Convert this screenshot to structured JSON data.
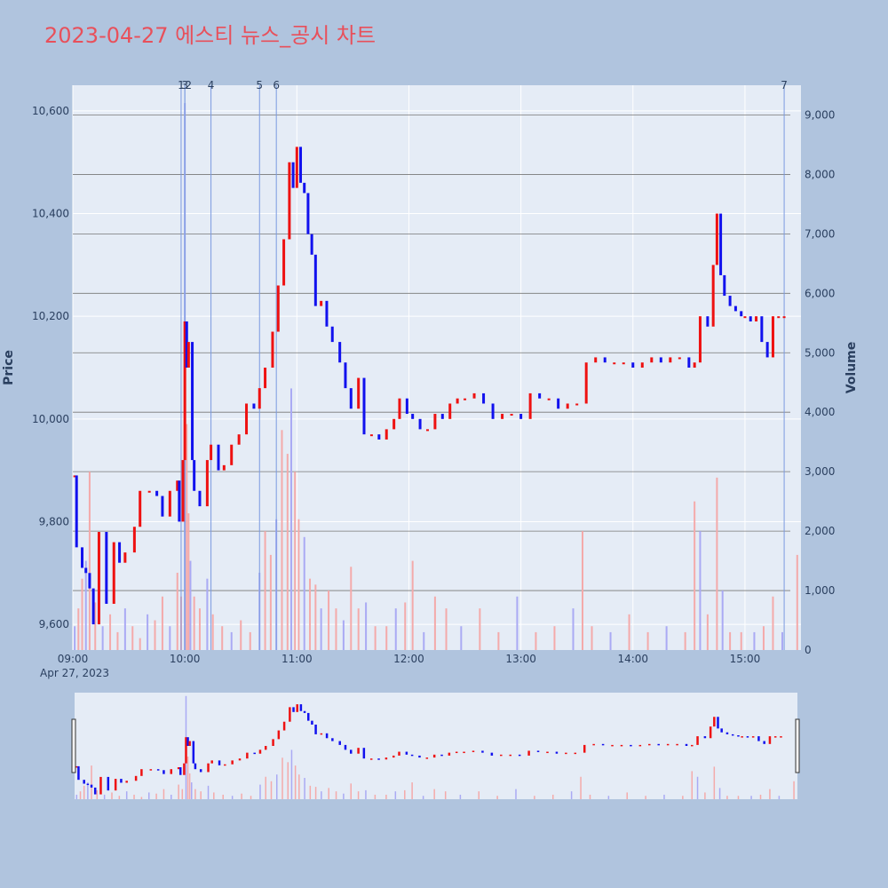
{
  "chart_data": {
    "type": "candlestick",
    "title": "2023-04-27 에스티 뉴스_공시 차트",
    "ylabel": "Price",
    "y2label": "Volume",
    "date_label": "Apr 27, 2023",
    "price_ylim": [
      9550,
      10650
    ],
    "volume_ylim": [
      0,
      9500
    ],
    "x_range": [
      "09:00",
      "15:30"
    ],
    "x_ticks": [
      "09:00",
      "10:00",
      "11:00",
      "12:00",
      "13:00",
      "14:00",
      "15:00"
    ],
    "y_ticks": [
      9600,
      9800,
      10000,
      10200,
      10400,
      10600
    ],
    "y_tick_labels": [
      "9,600",
      "9,800",
      "10,000",
      "10,200",
      "10,400",
      "10,600"
    ],
    "volume_ticks": [
      0,
      1000,
      2000,
      3000,
      4000,
      5000,
      6000,
      7000,
      8000,
      9000
    ],
    "volume_tick_labels": [
      "0",
      "1,000",
      "2,000",
      "3,000",
      "4,000",
      "5,000",
      "6,000",
      "7,000",
      "8,000",
      "9,000"
    ],
    "colors": {
      "up": "#ee1111",
      "down": "#1111ee",
      "up_volume": "#f4aaaa",
      "down_volume": "#aaaaf4",
      "marker": "#7a9ae0"
    },
    "news_markers": [
      {
        "label": "1",
        "time": "09:58"
      },
      {
        "label": "2",
        "time": "10:00"
      },
      {
        "label": "3",
        "time": "10:00"
      },
      {
        "label": "4",
        "time": "10:14"
      },
      {
        "label": "5",
        "time": "10:40"
      },
      {
        "label": "6",
        "time": "10:49"
      },
      {
        "label": "7",
        "time": "15:21"
      }
    ],
    "price_series": [
      [
        "09:01",
        9890
      ],
      [
        "09:02",
        9750
      ],
      [
        "09:05",
        9710
      ],
      [
        "09:07",
        9700
      ],
      [
        "09:09",
        9670
      ],
      [
        "09:11",
        9600
      ],
      [
        "09:14",
        9780
      ],
      [
        "09:18",
        9640
      ],
      [
        "09:22",
        9760
      ],
      [
        "09:25",
        9720
      ],
      [
        "09:28",
        9740
      ],
      [
        "09:33",
        9790
      ],
      [
        "09:36",
        9860
      ],
      [
        "09:41",
        9860
      ],
      [
        "09:45",
        9850
      ],
      [
        "09:48",
        9810
      ],
      [
        "09:52",
        9860
      ],
      [
        "09:56",
        9880
      ],
      [
        "09:57",
        9800
      ],
      [
        "09:59",
        9920
      ],
      [
        "10:00",
        10190
      ],
      [
        "10:01",
        10100
      ],
      [
        "10:02",
        10150
      ],
      [
        "10:04",
        9920
      ],
      [
        "10:05",
        9860
      ],
      [
        "10:08",
        9830
      ],
      [
        "10:12",
        9920
      ],
      [
        "10:14",
        9950
      ],
      [
        "10:18",
        9900
      ],
      [
        "10:21",
        9910
      ],
      [
        "10:25",
        9950
      ],
      [
        "10:29",
        9970
      ],
      [
        "10:33",
        10030
      ],
      [
        "10:37",
        10020
      ],
      [
        "10:40",
        10060
      ],
      [
        "10:43",
        10100
      ],
      [
        "10:47",
        10170
      ],
      [
        "10:50",
        10260
      ],
      [
        "10:53",
        10350
      ],
      [
        "10:56",
        10500
      ],
      [
        "10:58",
        10450
      ],
      [
        "11:00",
        10530
      ],
      [
        "11:02",
        10460
      ],
      [
        "11:04",
        10440
      ],
      [
        "11:06",
        10360
      ],
      [
        "11:08",
        10320
      ],
      [
        "11:10",
        10220
      ],
      [
        "11:13",
        10230
      ],
      [
        "11:16",
        10180
      ],
      [
        "11:19",
        10150
      ],
      [
        "11:23",
        10110
      ],
      [
        "11:26",
        10060
      ],
      [
        "11:29",
        10020
      ],
      [
        "11:33",
        10080
      ],
      [
        "11:36",
        9970
      ],
      [
        "11:40",
        9970
      ],
      [
        "11:44",
        9960
      ],
      [
        "11:48",
        9980
      ],
      [
        "11:52",
        10000
      ],
      [
        "11:55",
        10040
      ],
      [
        "11:59",
        10010
      ],
      [
        "12:02",
        10000
      ],
      [
        "12:06",
        9980
      ],
      [
        "12:10",
        9980
      ],
      [
        "12:14",
        10010
      ],
      [
        "12:18",
        10000
      ],
      [
        "12:22",
        10030
      ],
      [
        "12:26",
        10040
      ],
      [
        "12:30",
        10040
      ],
      [
        "12:35",
        10050
      ],
      [
        "12:40",
        10030
      ],
      [
        "12:45",
        10000
      ],
      [
        "12:50",
        10010
      ],
      [
        "12:55",
        10010
      ],
      [
        "13:00",
        10000
      ],
      [
        "13:05",
        10050
      ],
      [
        "13:10",
        10040
      ],
      [
        "13:15",
        10040
      ],
      [
        "13:20",
        10020
      ],
      [
        "13:25",
        10030
      ],
      [
        "13:30",
        10030
      ],
      [
        "13:35",
        10110
      ],
      [
        "13:40",
        10120
      ],
      [
        "13:45",
        10110
      ],
      [
        "13:50",
        10110
      ],
      [
        "13:55",
        10110
      ],
      [
        "14:00",
        10100
      ],
      [
        "14:05",
        10110
      ],
      [
        "14:10",
        10120
      ],
      [
        "14:15",
        10110
      ],
      [
        "14:20",
        10120
      ],
      [
        "14:25",
        10120
      ],
      [
        "14:30",
        10100
      ],
      [
        "14:33",
        10110
      ],
      [
        "14:36",
        10200
      ],
      [
        "14:40",
        10180
      ],
      [
        "14:43",
        10300
      ],
      [
        "14:45",
        10400
      ],
      [
        "14:47",
        10280
      ],
      [
        "14:49",
        10240
      ],
      [
        "14:52",
        10220
      ],
      [
        "14:55",
        10210
      ],
      [
        "14:58",
        10200
      ],
      [
        "15:00",
        10200
      ],
      [
        "15:03",
        10190
      ],
      [
        "15:06",
        10200
      ],
      [
        "15:09",
        10150
      ],
      [
        "15:12",
        10120
      ],
      [
        "15:15",
        10200
      ],
      [
        "15:18",
        10200
      ],
      [
        "15:21",
        10200
      ]
    ],
    "volume_series": [
      [
        "09:01",
        400
      ],
      [
        "09:03",
        700
      ],
      [
        "09:05",
        1200
      ],
      [
        "09:07",
        1500
      ],
      [
        "09:09",
        3000
      ],
      [
        "09:12",
        800
      ],
      [
        "09:16",
        400
      ],
      [
        "09:20",
        600
      ],
      [
        "09:24",
        300
      ],
      [
        "09:28",
        700
      ],
      [
        "09:32",
        400
      ],
      [
        "09:36",
        200
      ],
      [
        "09:40",
        600
      ],
      [
        "09:44",
        500
      ],
      [
        "09:48",
        900
      ],
      [
        "09:52",
        400
      ],
      [
        "09:56",
        1300
      ],
      [
        "09:58",
        900
      ],
      [
        "10:00",
        9200
      ],
      [
        "10:01",
        3800
      ],
      [
        "10:02",
        2300
      ],
      [
        "10:03",
        1500
      ],
      [
        "10:05",
        900
      ],
      [
        "10:08",
        700
      ],
      [
        "10:12",
        1200
      ],
      [
        "10:15",
        600
      ],
      [
        "10:20",
        400
      ],
      [
        "10:25",
        300
      ],
      [
        "10:30",
        500
      ],
      [
        "10:35",
        300
      ],
      [
        "10:40",
        1300
      ],
      [
        "10:43",
        2000
      ],
      [
        "10:46",
        1600
      ],
      [
        "10:49",
        2200
      ],
      [
        "10:52",
        3700
      ],
      [
        "10:55",
        3300
      ],
      [
        "10:57",
        4400
      ],
      [
        "10:59",
        3000
      ],
      [
        "11:01",
        2200
      ],
      [
        "11:04",
        1900
      ],
      [
        "11:07",
        1200
      ],
      [
        "11:10",
        1100
      ],
      [
        "11:13",
        700
      ],
      [
        "11:17",
        1000
      ],
      [
        "11:21",
        700
      ],
      [
        "11:25",
        500
      ],
      [
        "11:29",
        1400
      ],
      [
        "11:33",
        700
      ],
      [
        "11:37",
        800
      ],
      [
        "11:42",
        400
      ],
      [
        "11:48",
        400
      ],
      [
        "11:53",
        700
      ],
      [
        "11:58",
        800
      ],
      [
        "12:02",
        1500
      ],
      [
        "12:08",
        300
      ],
      [
        "12:14",
        900
      ],
      [
        "12:20",
        700
      ],
      [
        "12:28",
        400
      ],
      [
        "12:38",
        700
      ],
      [
        "12:48",
        300
      ],
      [
        "12:58",
        900
      ],
      [
        "13:08",
        300
      ],
      [
        "13:18",
        400
      ],
      [
        "13:28",
        700
      ],
      [
        "13:33",
        2000
      ],
      [
        "13:38",
        400
      ],
      [
        "13:48",
        300
      ],
      [
        "13:58",
        600
      ],
      [
        "14:08",
        300
      ],
      [
        "14:18",
        400
      ],
      [
        "14:28",
        300
      ],
      [
        "14:33",
        2500
      ],
      [
        "14:36",
        2000
      ],
      [
        "14:40",
        600
      ],
      [
        "14:45",
        2900
      ],
      [
        "14:48",
        1000
      ],
      [
        "14:52",
        300
      ],
      [
        "14:58",
        300
      ],
      [
        "15:05",
        300
      ],
      [
        "15:10",
        400
      ],
      [
        "15:15",
        900
      ],
      [
        "15:20",
        300
      ],
      [
        "15:28",
        1600
      ]
    ],
    "grid": true,
    "range_slider": true
  }
}
